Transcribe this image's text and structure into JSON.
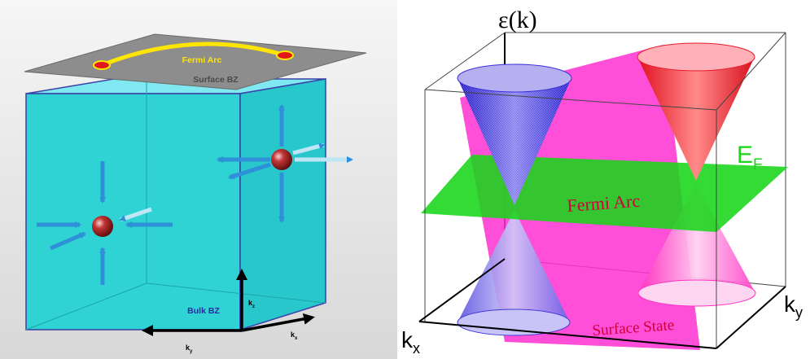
{
  "left_panel": {
    "fermi_arc_label": "Fermi Arc",
    "surface_bz_label": "Surface BZ",
    "bulk_bz_label": "Bulk BZ",
    "axis_kz": "k",
    "axis_kz_sub": "z",
    "axis_kx": "k",
    "axis_kx_sub": "x",
    "axis_ky": "k",
    "axis_ky_sub": "y",
    "colors": {
      "box_front": "#2fd3d3",
      "box_side": "#22c4c8",
      "box_top": "#7fe8f0",
      "plane": "#8f8f8f",
      "arc": "#ffe600",
      "arrow": "#2f8fd8",
      "node": "#b52a2a"
    }
  },
  "right_panel": {
    "energy_axis_label": "ε(k)",
    "fermi_level_label": "E",
    "fermi_level_sub": "F",
    "fermi_arc_label": "Fermi Arc",
    "surface_state_label": "Surface State",
    "axis_kx": "k",
    "axis_kx_sub": "x",
    "axis_ky": "k",
    "axis_ky_sub": "y",
    "colors": {
      "surface_state": "#ff2fd0",
      "fermi_plane": "#19d619",
      "cone_blue": "#3a2fd8",
      "cone_red": "#e81a2a",
      "label_red": "#d0003a"
    }
  }
}
